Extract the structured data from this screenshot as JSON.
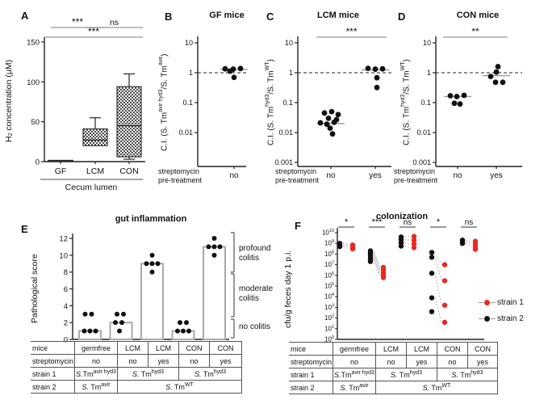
{
  "colors": {
    "black_point": "#111111",
    "red_point": "#e8291f",
    "gray_line": "#999999",
    "axis": "#222222",
    "bar_stroke": "#aaaaaa"
  },
  "panels": {
    "A": {
      "letter": "A",
      "ylabel_parts": [
        {
          "t": "H"
        },
        {
          "sub": "2"
        },
        {
          "t": " concentration (µM)"
        }
      ],
      "xlabel": "Cecum lumen"
    },
    "B": {
      "letter": "B",
      "title": "GF mice",
      "ylabel_parts": [
        {
          "t": "C.I. (S. Tm"
        },
        {
          "sup": "avir hyd3"
        },
        {
          "t": "/S. Tm"
        },
        {
          "sup": "avir"
        },
        {
          "t": ")"
        }
      ],
      "pretreat": [
        "streptomycin",
        "pre-treatment"
      ]
    },
    "C": {
      "letter": "C",
      "title": "LCM mice",
      "ylabel_parts": [
        {
          "t": "C.I. (S. Tm"
        },
        {
          "sup": "hyd3"
        },
        {
          "t": "/S. Tm"
        },
        {
          "sup": "WT"
        },
        {
          "t": ")"
        }
      ],
      "pretreat": [
        "streptomycin",
        "pre-treatment"
      ]
    },
    "D": {
      "letter": "D",
      "title": "CON mice",
      "ylabel_parts": [
        {
          "t": "C.I. (S. Tm"
        },
        {
          "sup": "hyd3"
        },
        {
          "t": "/S. Tm"
        },
        {
          "sup": "WT"
        },
        {
          "t": ")"
        }
      ],
      "pretreat": [
        "streptomycin",
        "pre-treatment"
      ]
    },
    "E": {
      "letter": "E",
      "title": "gut inflammation",
      "ylabel_parts": [
        {
          "t": "Pathological score"
        }
      ],
      "annotations": [
        "profound colitis",
        "moderate colitis",
        "no colitis"
      ]
    },
    "F": {
      "letter": "F",
      "title": "colonization",
      "ylabel_parts": [
        {
          "t": "cfu/g feces day 1 p.i."
        }
      ],
      "legend": [
        {
          "label": "strain 1",
          "color": "#e8291f"
        },
        {
          "label": "strain 2",
          "color": "#111111"
        }
      ]
    }
  },
  "chart_data": [
    {
      "panel": "A",
      "type": "box",
      "title": "",
      "ylabel": "H2 concentration (µM)",
      "ylim": [
        0,
        150
      ],
      "yticks": [
        0,
        50,
        100,
        150
      ],
      "categories": [
        "GF",
        "LCM",
        "CON"
      ],
      "xlabel": "Cecum lumen",
      "boxes": [
        {
          "lo": 0.5,
          "q1": 0.5,
          "med": 1,
          "q3": 2.2,
          "hi": 2.2
        },
        {
          "lo": 20,
          "q1": 20,
          "med": 27,
          "q3": 41,
          "hi": 55
        },
        {
          "lo": 3,
          "q1": 6,
          "med": 45,
          "q3": 94,
          "hi": 110
        }
      ],
      "significance": [
        {
          "a": 0,
          "b": 1,
          "label": "***",
          "row": 0
        },
        {
          "a": 1,
          "b": 2,
          "label": "ns",
          "row": 0
        },
        {
          "a": 0,
          "b": 2,
          "label": "***",
          "row": 1
        }
      ]
    },
    {
      "panel": "B",
      "type": "scatter-log",
      "title": "GF mice",
      "yticks": [
        "10",
        "1",
        "0.1",
        "0.01"
      ],
      "dash_at": 1,
      "groups": [
        {
          "tick": "no",
          "median": 1.3,
          "points": [
            [
              -11,
              1.35
            ],
            [
              -1,
              1.32
            ],
            [
              8,
              1.38
            ],
            [
              -5,
              1.13
            ],
            [
              0,
              0.7
            ]
          ]
        }
      ],
      "significance": []
    },
    {
      "panel": "C",
      "type": "scatter-log",
      "title": "LCM mice",
      "yticks": [
        "10",
        "1",
        "0.1",
        "0.01",
        "0.001"
      ],
      "dash_at": 1,
      "groups": [
        {
          "tick": "no",
          "median": 0.02,
          "points": [
            [
              -8,
              0.045
            ],
            [
              1,
              0.05
            ],
            [
              9,
              0.04
            ],
            [
              -3,
              0.03
            ],
            [
              7,
              0.027
            ],
            [
              -13,
              0.021
            ],
            [
              -5,
              0.019
            ],
            [
              4,
              0.022
            ],
            [
              -1,
              0.014
            ],
            [
              2,
              0.009
            ]
          ]
        },
        {
          "tick": "yes",
          "median": 1.25,
          "points": [
            [
              -9,
              1.4
            ],
            [
              0,
              1.32
            ],
            [
              9,
              1.35
            ],
            [
              2,
              0.68
            ],
            [
              2,
              0.32
            ]
          ]
        }
      ],
      "significance": [
        {
          "a": 0,
          "b": 1,
          "label": "***"
        }
      ]
    },
    {
      "panel": "D",
      "type": "scatter-log",
      "title": "CON mice",
      "yticks": [
        "10",
        "1",
        "0.1",
        "0.01",
        "0.001"
      ],
      "dash_at": 1,
      "groups": [
        {
          "tick": "no",
          "median": 0.16,
          "points": [
            [
              -9,
              0.17
            ],
            [
              -1,
              0.16
            ],
            [
              8,
              0.175
            ],
            [
              -4,
              0.095
            ],
            [
              3,
              0.09
            ]
          ]
        },
        {
          "tick": "yes",
          "median": 0.8,
          "points": [
            [
              2,
              1.6
            ],
            [
              0,
              1.05
            ],
            [
              -7,
              0.75
            ],
            [
              -1,
              0.48
            ],
            [
              8,
              0.48
            ]
          ]
        }
      ],
      "significance": [
        {
          "a": 0,
          "b": 1,
          "label": "**"
        }
      ]
    },
    {
      "panel": "E",
      "type": "bar-scatter",
      "title": "gut inflammation",
      "ylabel": "Pathological score",
      "ylim": [
        0,
        12.8
      ],
      "yticks": [
        0,
        2,
        4,
        6,
        8,
        10,
        12
      ],
      "categories": [
        "germfree",
        "LCM",
        "LCM",
        "CON",
        "CON"
      ],
      "bars": [
        1,
        2,
        9,
        1,
        11
      ],
      "points": [
        [
          [
            -6,
            3
          ],
          [
            2,
            3
          ],
          [
            -7,
            1
          ],
          [
            0,
            1
          ],
          [
            7,
            1
          ]
        ],
        [
          [
            -5,
            3
          ],
          [
            3,
            3
          ],
          [
            -7,
            2
          ],
          [
            1,
            2
          ],
          [
            -2,
            1
          ]
        ],
        [
          [
            0,
            10
          ],
          [
            -7,
            9
          ],
          [
            0,
            9
          ],
          [
            7,
            9
          ],
          [
            0,
            8
          ]
        ],
        [
          [
            -4,
            2
          ],
          [
            4,
            2
          ],
          [
            -7,
            1
          ],
          [
            0,
            1
          ],
          [
            7,
            1
          ]
        ],
        [
          [
            0,
            12
          ],
          [
            -7,
            11
          ],
          [
            0,
            11
          ],
          [
            7,
            11
          ],
          [
            0,
            10
          ]
        ]
      ],
      "brackets": [
        {
          "label": "profound colitis",
          "from": 8,
          "to": 12.7
        },
        {
          "label": "moderate colitis",
          "from": 2.7,
          "to": 7.8
        },
        {
          "label": "no colitis",
          "from": 0.2,
          "to": 2.4
        }
      ]
    },
    {
      "panel": "F",
      "type": "paired-scatter-log",
      "title": "colonization",
      "ylabel": "cfu/g feces day 1 p.i.",
      "ytick_exponents": [
        0,
        1,
        2,
        3,
        4,
        5,
        6,
        7,
        8,
        9,
        10
      ],
      "series": [
        {
          "name": "strain 1",
          "color": "#e8291f"
        },
        {
          "name": "strain 2",
          "color": "#111111"
        }
      ],
      "groups": [
        {
          "sig": "*",
          "strain2_log10": [
            9.0,
            8.85,
            8.7
          ],
          "strain1_log10": [
            8.85,
            8.7,
            8.5
          ]
        },
        {
          "sig": "***",
          "strain2_log10": [
            8.3,
            8.1,
            7.9,
            7.7,
            7.5,
            7.3
          ],
          "strain1_log10": [
            6.75,
            6.5,
            6.25,
            6.0,
            5.8
          ]
        },
        {
          "sig": "ns",
          "strain2_log10": [
            9.6,
            9.35,
            9.05,
            8.75
          ],
          "strain1_log10": [
            9.65,
            9.3,
            8.95,
            8.6
          ]
        },
        {
          "sig": "*",
          "strain2_log10": [
            8.15,
            7.7,
            6.2,
            3.9,
            2.6
          ],
          "strain1_log10": [
            7.0,
            5.5,
            3.2,
            1.6
          ]
        },
        {
          "sig": "ns",
          "strain2_log10": [
            9.3,
            9.15,
            9.0
          ],
          "strain1_log10": [
            9.2,
            8.95,
            8.7,
            8.45
          ]
        }
      ]
    }
  ],
  "group_table": {
    "rows": [
      {
        "label": "mice",
        "cells": [
          {
            "span": 1,
            "text": "germfree"
          },
          {
            "span": 1,
            "text": "LCM"
          },
          {
            "span": 1,
            "text": "LCM"
          },
          {
            "span": 1,
            "text": "CON"
          },
          {
            "span": 1,
            "text": "CON"
          }
        ]
      },
      {
        "label": "streptomycin",
        "cells": [
          {
            "span": 1,
            "text": "no"
          },
          {
            "span": 1,
            "text": "no"
          },
          {
            "span": 1,
            "text": "yes"
          },
          {
            "span": 1,
            "text": "no"
          },
          {
            "span": 1,
            "text": "yes"
          }
        ]
      },
      {
        "label": "strain 1",
        "cells": [
          {
            "span": 1,
            "parts": [
              {
                "t": "S.",
                "i": true
              },
              {
                "t": "Tm"
              },
              {
                "sup": "avir hyd3"
              }
            ]
          },
          {
            "span": 2,
            "parts": [
              {
                "t": "S.",
                "i": true
              },
              {
                "t": " Tm"
              },
              {
                "sup": "hyd3"
              }
            ]
          },
          {
            "span": 2,
            "parts": [
              {
                "t": "S.",
                "i": true
              },
              {
                "t": " Tm"
              },
              {
                "sup": "hyd3"
              }
            ]
          }
        ]
      },
      {
        "label": "strain 2",
        "cells": [
          {
            "span": 1,
            "parts": [
              {
                "t": "S.",
                "i": true
              },
              {
                "t": " Tm"
              },
              {
                "sup": "avir"
              }
            ]
          },
          {
            "span": 4,
            "parts": [
              {
                "t": "S.",
                "i": true
              },
              {
                "t": " Tm"
              },
              {
                "sup": "WT"
              }
            ]
          }
        ]
      }
    ]
  }
}
